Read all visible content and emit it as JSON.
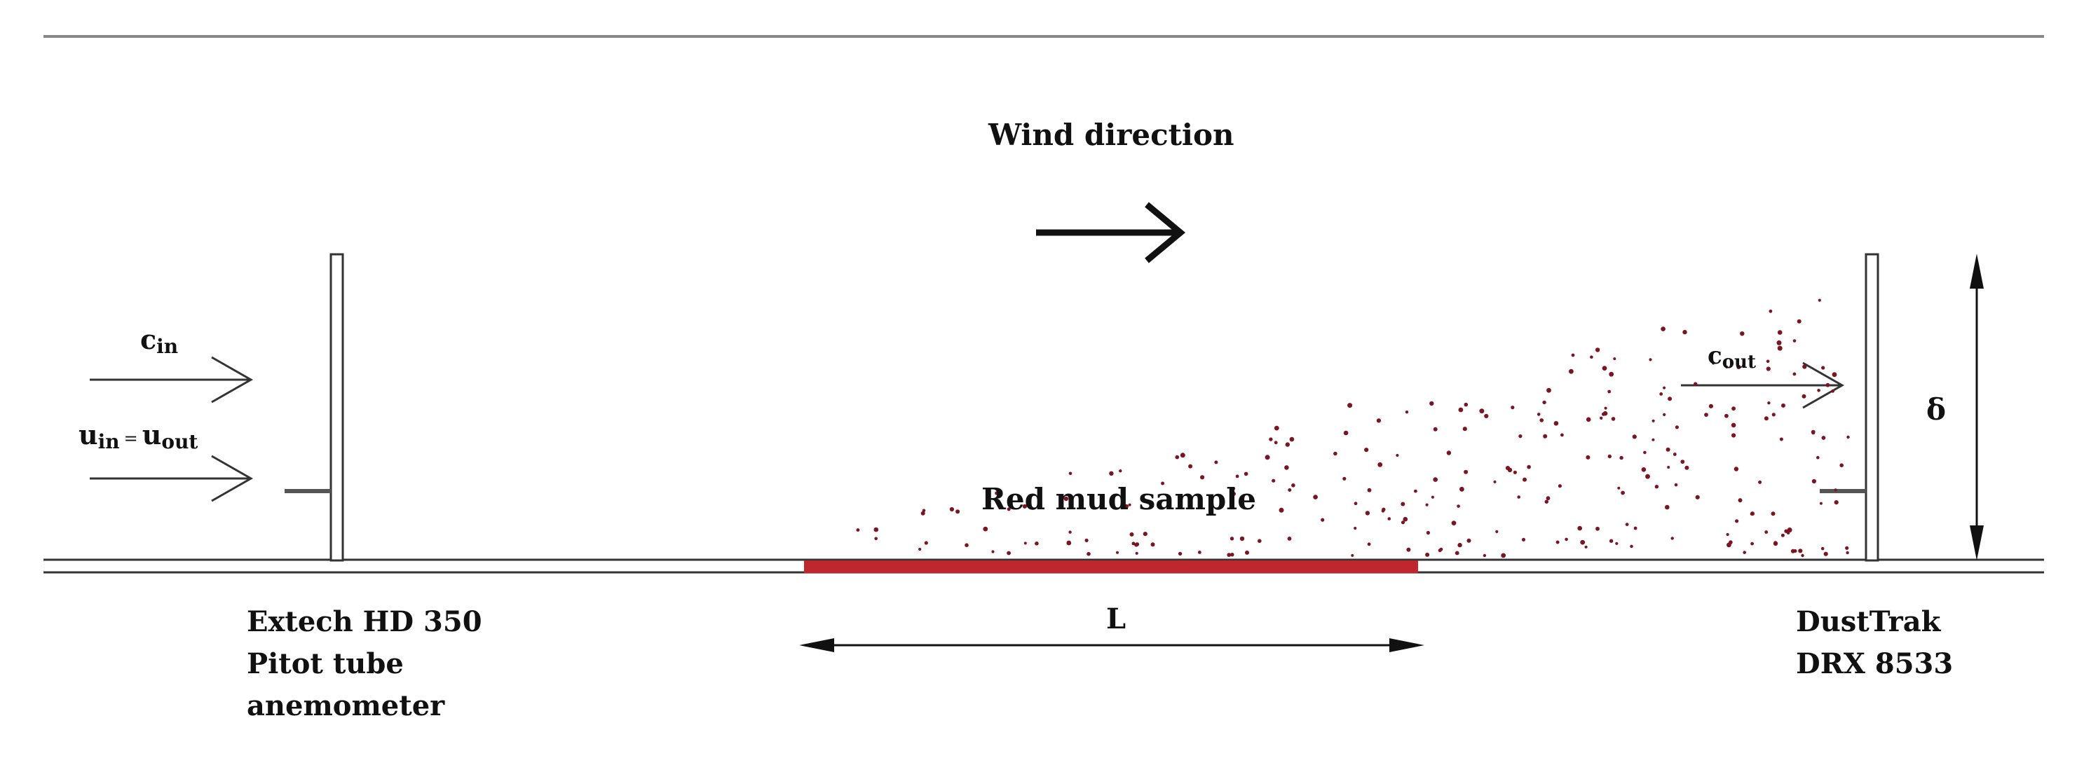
{
  "wind_label": "Wind direction",
  "sample_label": "Red mud sample",
  "length_label": "L",
  "thickness_label": "δ",
  "c_in": {
    "base": "c",
    "sub": "in"
  },
  "u_eq": {
    "left_base": "u",
    "left_sub": "in",
    "eq": "=",
    "right_base": "u",
    "right_sub": "out"
  },
  "c_out": {
    "base": "c",
    "sub": "out"
  },
  "left_instrument": {
    "line1": "Extech HD 350",
    "line2": "Pitot tube",
    "line3": "anemometer"
  },
  "right_instrument": {
    "line1": "DustTrak",
    "line2": "DRX 8533"
  },
  "colors": {
    "sample": "#c0272d",
    "particles": "#7a1522",
    "lines": "#222222"
  }
}
